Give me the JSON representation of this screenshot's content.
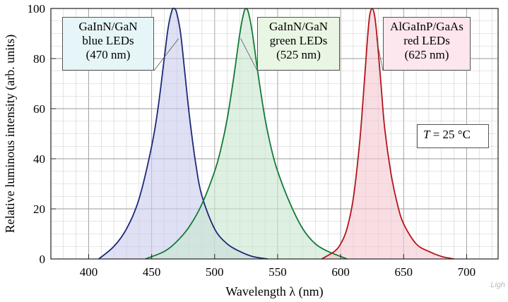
{
  "chart_data": {
    "type": "line",
    "xlabel": "Wavelength λ  (nm)",
    "ylabel": "Relative luminous intensity  (arb. units)",
    "xlim": [
      370,
      725
    ],
    "ylim": [
      0,
      100
    ],
    "x_ticks": [
      400,
      450,
      500,
      550,
      600,
      650,
      700
    ],
    "y_ticks": [
      0,
      20,
      40,
      60,
      80,
      100
    ],
    "grid": true,
    "series": [
      {
        "name": "GaInN/GaN blue LEDs (470 nm)",
        "label_lines": [
          "GaInN/GaN",
          "blue LEDs",
          "(470 nm)"
        ],
        "color": "#1c2a78",
        "fill": "#c9cbec",
        "peak": 468,
        "x": [
          408,
          420,
          430,
          440,
          450,
          455,
          460,
          463,
          466,
          468,
          470,
          473,
          476,
          480,
          485,
          490,
          500,
          510,
          520,
          530,
          542
        ],
        "y": [
          0,
          5,
          12,
          24,
          45,
          60,
          80,
          92,
          99,
          100,
          98,
          90,
          76,
          57,
          38,
          25,
          12,
          6,
          3,
          1,
          0
        ]
      },
      {
        "name": "GaInN/GaN green LEDs (525 nm)",
        "label_lines": [
          "GaInN/GaN",
          "green LEDs",
          "(525 nm)"
        ],
        "color": "#137a37",
        "fill": "#c8e6cf",
        "peak": 525,
        "x": [
          445,
          460,
          470,
          480,
          490,
          500,
          505,
          510,
          515,
          520,
          523,
          525,
          527,
          530,
          535,
          540,
          545,
          550,
          560,
          570,
          580,
          590,
          600,
          605
        ],
        "y": [
          0,
          3,
          7,
          13,
          22,
          35,
          44,
          56,
          72,
          90,
          98,
          100,
          98,
          90,
          72,
          56,
          44,
          35,
          22,
          12,
          6,
          3,
          1,
          0
        ]
      },
      {
        "name": "AlGaInP/GaAs red LEDs (625 nm)",
        "label_lines": [
          "AlGaInP/GaAs",
          "red LEDs",
          "(625 nm)"
        ],
        "color": "#b3141b",
        "fill": "#f3c8d0",
        "peak": 625,
        "x": [
          585,
          595,
          600,
          605,
          610,
          615,
          618,
          621,
          623,
          625,
          627,
          629,
          632,
          635,
          640,
          645,
          650,
          660,
          670,
          680,
          690
        ],
        "y": [
          0,
          3,
          6,
          12,
          24,
          46,
          65,
          86,
          97,
          100,
          97,
          88,
          70,
          52,
          34,
          22,
          14,
          6,
          3,
          1,
          0
        ]
      }
    ],
    "annotation": {
      "temperature_italic": "T",
      "temperature_rest": " = 25 °C"
    }
  },
  "watermark": "Ligh"
}
